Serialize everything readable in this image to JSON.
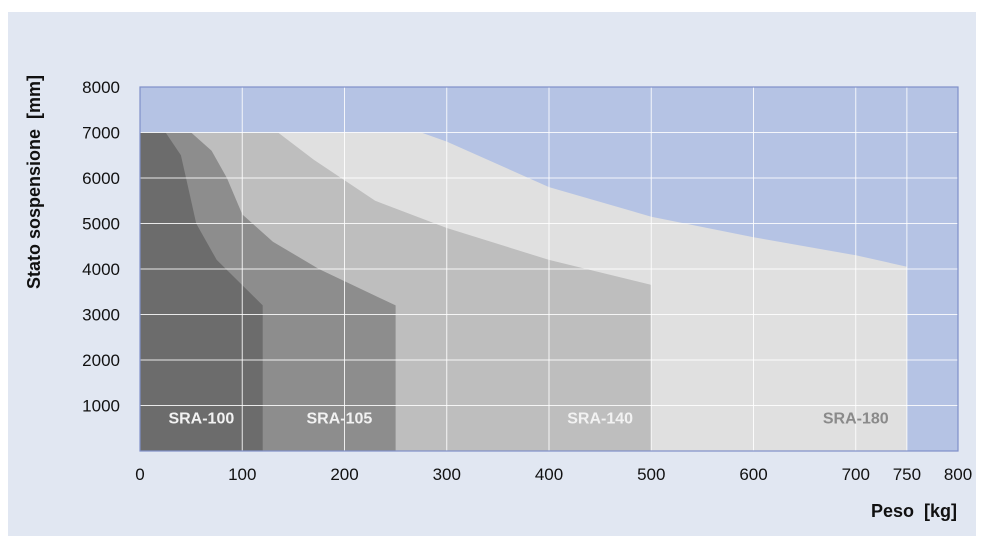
{
  "chart_data": {
    "type": "area",
    "title": "",
    "xlabel": "Peso  [kg]",
    "ylabel": "Stato sospensione  [mm]",
    "xlim": [
      0,
      800
    ],
    "ylim": [
      0,
      8000
    ],
    "x_ticks": [
      "0",
      "100",
      "200",
      "300",
      "400",
      "500",
      "600",
      "700",
      "750",
      "800"
    ],
    "x_tick_values": [
      0,
      100,
      200,
      300,
      400,
      500,
      600,
      700,
      750,
      800
    ],
    "y_ticks": [
      "1000",
      "2000",
      "3000",
      "4000",
      "5000",
      "6000",
      "7000",
      "8000"
    ],
    "y_tick_values": [
      1000,
      2000,
      3000,
      4000,
      5000,
      6000,
      7000,
      8000
    ],
    "grid": true,
    "series": [
      {
        "name": "SRA-180",
        "x": [
          0,
          275,
          300,
          400,
          500,
          600,
          700,
          750,
          750,
          0
        ],
        "y": [
          7000,
          7000,
          6800,
          5800,
          5150,
          4700,
          4300,
          4050,
          0,
          0
        ]
      },
      {
        "name": "SRA-140",
        "x": [
          0,
          135,
          170,
          230,
          300,
          400,
          500,
          500,
          0
        ],
        "y": [
          7000,
          7000,
          6400,
          5500,
          4900,
          4200,
          3650,
          0,
          0
        ]
      },
      {
        "name": "SRA-105",
        "x": [
          0,
          50,
          70,
          85,
          100,
          130,
          175,
          250,
          250,
          0
        ],
        "y": [
          7000,
          7000,
          6600,
          6000,
          5200,
          4600,
          4000,
          3200,
          0,
          0
        ]
      },
      {
        "name": "SRA-100",
        "x": [
          0,
          25,
          40,
          48,
          55,
          75,
          120,
          120,
          0
        ],
        "y": [
          7000,
          7000,
          6500,
          5700,
          5000,
          4200,
          3200,
          0,
          0
        ]
      }
    ],
    "labels": [
      {
        "text": "SRA-100",
        "x": 60,
        "y": 600
      },
      {
        "text": "SRA-105",
        "x": 195,
        "y": 600
      },
      {
        "text": "SRA-140",
        "x": 450,
        "y": 600
      },
      {
        "text": "SRA-180",
        "x": 700,
        "y": 600
      }
    ],
    "colors": {
      "outer_background": "#e1e7f2",
      "plot_background": "#b5c3e4",
      "axis": "#7f90c9",
      "grid": "#ffffff",
      "SRA-180": "#e0e0e0",
      "SRA-140": "#bebebe",
      "SRA-105": "#8d8d8d",
      "SRA-100": "#6c6c6c",
      "label_light": "#f2f2f2",
      "label_dark": "#8a8a8a"
    }
  }
}
